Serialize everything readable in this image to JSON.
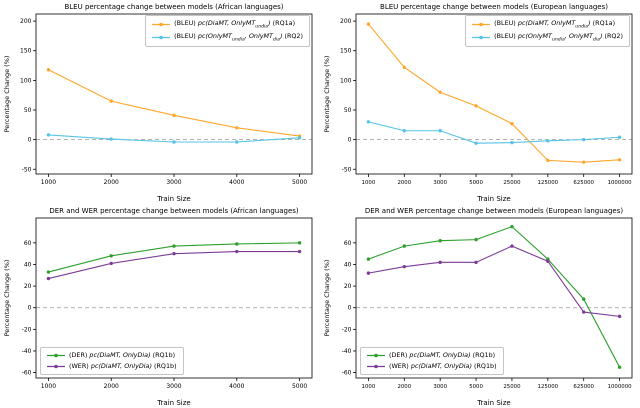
{
  "figure": {
    "background": "#ffffff",
    "zero_line_color": "#999999",
    "spine_color": "#000000"
  },
  "chart_data": [
    {
      "type": "line",
      "title": "BLEU percentage change between models (African languages)",
      "xlabel": "Train Size",
      "ylabel": "Percentage Change (%)",
      "categories": [
        "1000",
        "2000",
        "3000",
        "4000",
        "5000"
      ],
      "ylim": [
        -58,
        212
      ],
      "yticks": [
        -50,
        0,
        50,
        100,
        150,
        200
      ],
      "zero_line": true,
      "grid": false,
      "legend_pos": "top-right",
      "series": [
        {
          "label": "(BLEU) pc(DiaMT, OnlyMT_undia) (RQ1a)",
          "color": "#FFA62B",
          "values": [
            118,
            65,
            41,
            20,
            6
          ],
          "label_segments": [
            {
              "t": "(BLEU) "
            },
            {
              "t": "pc(DiaMT, OnlyMT",
              "i": 1
            },
            {
              "t": "undia",
              "i": 1,
              "sub": 1
            },
            {
              "t": ")",
              "i": 1
            },
            {
              "t": " (RQ1a)"
            }
          ]
        },
        {
          "label": "(BLEU) pc(OnlyMT_undia, OnlyMT_dia) (RQ2)",
          "color": "#55C4E6",
          "values": [
            8,
            1,
            -4,
            -4,
            3
          ],
          "label_segments": [
            {
              "t": "(BLEU) "
            },
            {
              "t": "pc(OnlyMT",
              "i": 1
            },
            {
              "t": "undia",
              "i": 1,
              "sub": 1
            },
            {
              "t": ", OnlyMT",
              "i": 1
            },
            {
              "t": "dia",
              "i": 1,
              "sub": 1
            },
            {
              "t": ")",
              "i": 1
            },
            {
              "t": " (RQ2)"
            }
          ]
        }
      ]
    },
    {
      "type": "line",
      "title": "BLEU percentage change between models (European languages)",
      "xlabel": "Train Size",
      "ylabel": "Percentage Change (%)",
      "categories": [
        "1000",
        "2000",
        "3000",
        "5000",
        "25000",
        "125000",
        "625000",
        "1000000"
      ],
      "ylim": [
        -58,
        212
      ],
      "yticks": [
        -50,
        0,
        50,
        100,
        150,
        200
      ],
      "zero_line": true,
      "grid": false,
      "legend_pos": "top-right",
      "series": [
        {
          "label": "(BLEU) pc(DiaMT, OnlyMT_undia) (RQ1a)",
          "color": "#FFA62B",
          "values": [
            195,
            122,
            80,
            57,
            27,
            -35,
            -38,
            -34
          ],
          "label_segments": [
            {
              "t": "(BLEU) "
            },
            {
              "t": "pc(DiaMT, OnlyMT",
              "i": 1
            },
            {
              "t": "undia",
              "i": 1,
              "sub": 1
            },
            {
              "t": ")",
              "i": 1
            },
            {
              "t": " (RQ1a)"
            }
          ]
        },
        {
          "label": "(BLEU) pc(OnlyMT_undia, OnlyMT_dia) (RQ2)",
          "color": "#55C4E6",
          "values": [
            30,
            15,
            15,
            -6,
            -5,
            -2,
            0,
            4
          ],
          "label_segments": [
            {
              "t": "(BLEU) "
            },
            {
              "t": "pc(OnlyMT",
              "i": 1
            },
            {
              "t": "undia",
              "i": 1,
              "sub": 1
            },
            {
              "t": ", OnlyMT",
              "i": 1
            },
            {
              "t": "dia",
              "i": 1,
              "sub": 1
            },
            {
              "t": ")",
              "i": 1
            },
            {
              "t": " (RQ2)"
            }
          ]
        }
      ]
    },
    {
      "type": "line",
      "title": "DER and WER percentage change between models (African languages)",
      "xlabel": "Train Size",
      "ylabel": "Percentage Change (%)",
      "categories": [
        "1000",
        "2000",
        "3000",
        "4000",
        "5000"
      ],
      "ylim": [
        -65,
        83
      ],
      "yticks": [
        -60,
        -40,
        -20,
        0,
        20,
        40,
        60
      ],
      "zero_line": true,
      "grid": false,
      "legend_pos": "bottom-left",
      "series": [
        {
          "label": "(DER) pc(DiaMT, OnlyDia) (RQ1b)",
          "color": "#2CA02C",
          "values": [
            33,
            48,
            57,
            59,
            60
          ],
          "label_segments": [
            {
              "t": "(DER) "
            },
            {
              "t": "pc(DiaMT, OnlyDia)",
              "i": 1
            },
            {
              "t": " (RQ1b)"
            }
          ]
        },
        {
          "label": "(WER) pc(DiaMT, OnlyDia) (RQ1b)",
          "color": "#7D3C98",
          "values": [
            27,
            41,
            50,
            52,
            52
          ],
          "label_segments": [
            {
              "t": "(WER) "
            },
            {
              "t": "pc(DiaMT, OnlyDia)",
              "i": 1
            },
            {
              "t": " (RQ1b)"
            }
          ]
        }
      ]
    },
    {
      "type": "line",
      "title": "DER and WER percentage change between models (European languages)",
      "xlabel": "Train Size",
      "ylabel": "Percentage Change (%)",
      "categories": [
        "1000",
        "2000",
        "3000",
        "5000",
        "25000",
        "125000",
        "625000",
        "1000000"
      ],
      "ylim": [
        -65,
        83
      ],
      "yticks": [
        -60,
        -40,
        -20,
        0,
        20,
        40,
        60
      ],
      "zero_line": true,
      "grid": false,
      "legend_pos": "bottom-left",
      "series": [
        {
          "label": "(DER) pc(DiaMT, OnlyDia) (RQ1b)",
          "color": "#2CA02C",
          "values": [
            45,
            57,
            62,
            63,
            75,
            45,
            8,
            -55
          ],
          "label_segments": [
            {
              "t": "(DER) "
            },
            {
              "t": "pc(DiaMT, OnlyDia)",
              "i": 1
            },
            {
              "t": " (RQ1b)"
            }
          ]
        },
        {
          "label": "(WER) pc(DiaMT, OnlyDia) (RQ1b)",
          "color": "#7D3C98",
          "values": [
            32,
            38,
            42,
            42,
            57,
            43,
            -4,
            -8
          ],
          "label_segments": [
            {
              "t": "(WER) "
            },
            {
              "t": "pc(DiaMT, OnlyDia)",
              "i": 1
            },
            {
              "t": " (RQ1b)"
            }
          ]
        }
      ]
    }
  ]
}
